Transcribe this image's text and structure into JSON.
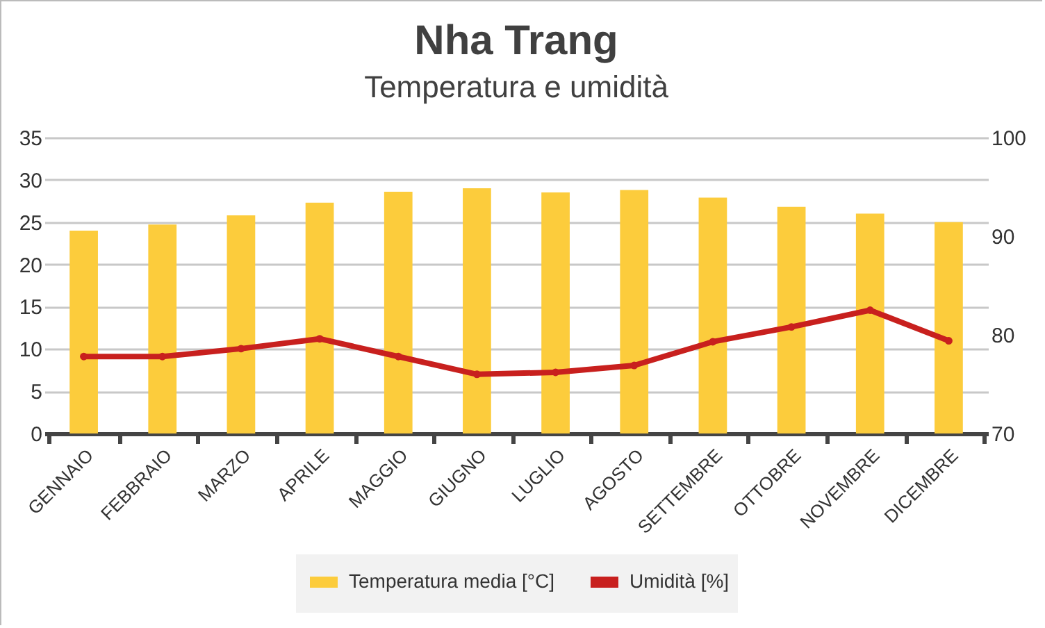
{
  "chart_data": {
    "type": "bar",
    "title": "Nha Trang",
    "subtitle": "Temperatura e umidità",
    "categories": [
      "GENNAIO",
      "FEBBRAIO",
      "MARZO",
      "APRILE",
      "MAGGIO",
      "GIUGNO",
      "LUGLIO",
      "AGOSTO",
      "SETTEMBRE",
      "OTTOBRE",
      "NOVEMBRE",
      "DICEMBRE"
    ],
    "series": [
      {
        "name": "Temperatura media [°C]",
        "color": "#fccc3c",
        "values": [
          24.0,
          24.7,
          25.8,
          27.3,
          28.6,
          29.0,
          28.5,
          28.8,
          27.9,
          26.8,
          26.0,
          25.0
        ]
      },
      {
        "name": "Umidità [%]",
        "type": "line",
        "axis": "y2",
        "color": "#c8201e",
        "marker": "circle",
        "values": [
          77.8,
          77.8,
          78.6,
          79.6,
          77.8,
          76.0,
          76.2,
          76.9,
          79.3,
          80.8,
          82.5,
          79.4
        ]
      }
    ],
    "ylim": [
      0,
      35
    ],
    "yticks": [
      0,
      5,
      10,
      15,
      20,
      25,
      30,
      35
    ],
    "y2lim": [
      70,
      100
    ],
    "y2ticks": [
      70,
      80,
      90,
      100
    ],
    "grid": "y",
    "legend": "bottom"
  }
}
